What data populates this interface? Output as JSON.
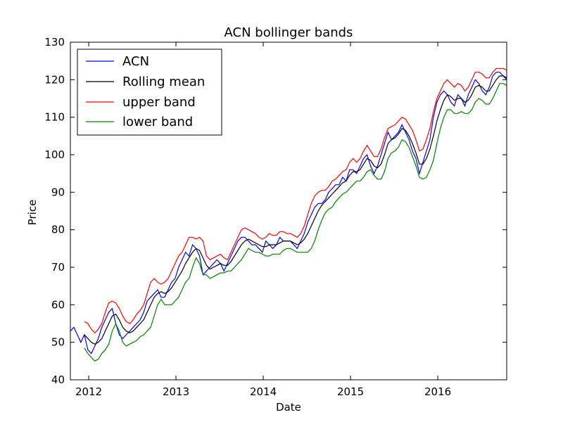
{
  "chart_data": {
    "type": "line",
    "title": "ACN bollinger bands",
    "xlabel": "Date",
    "ylabel": "Price",
    "ylim": [
      40,
      130
    ],
    "xlim": [
      2011.79,
      2016.79
    ],
    "yticks": [
      40,
      50,
      60,
      70,
      80,
      90,
      100,
      110,
      120,
      130
    ],
    "xticks": [
      {
        "value": 2012,
        "label": "2012"
      },
      {
        "value": 2013,
        "label": "2013"
      },
      {
        "value": 2014,
        "label": "2014"
      },
      {
        "value": 2015,
        "label": "2015"
      },
      {
        "value": 2016,
        "label": "2016"
      }
    ],
    "grid": false,
    "legend_position": "top-left",
    "series": [
      {
        "name": "ACN",
        "color": "#0000ff",
        "x": [
          2011.79,
          2011.83,
          2011.87,
          2011.91,
          2011.95,
          2011.99,
          2012.03,
          2012.07,
          2012.11,
          2012.15,
          2012.19,
          2012.23,
          2012.27,
          2012.31,
          2012.35,
          2012.39,
          2012.43,
          2012.47,
          2012.51,
          2012.55,
          2012.59,
          2012.63,
          2012.67,
          2012.71,
          2012.75,
          2012.79,
          2012.83,
          2012.87,
          2012.91,
          2012.95,
          2012.99,
          2013.03,
          2013.07,
          2013.11,
          2013.15,
          2013.19,
          2013.23,
          2013.27,
          2013.31,
          2013.35,
          2013.39,
          2013.43,
          2013.47,
          2013.51,
          2013.55,
          2013.59,
          2013.63,
          2013.67,
          2013.71,
          2013.75,
          2013.79,
          2013.83,
          2013.87,
          2013.91,
          2013.95,
          2013.99,
          2014.03,
          2014.07,
          2014.11,
          2014.15,
          2014.19,
          2014.23,
          2014.27,
          2014.31,
          2014.35,
          2014.39,
          2014.43,
          2014.47,
          2014.51,
          2014.55,
          2014.59,
          2014.63,
          2014.67,
          2014.71,
          2014.75,
          2014.79,
          2014.83,
          2014.87,
          2014.91,
          2014.95,
          2014.99,
          2015.03,
          2015.07,
          2015.11,
          2015.15,
          2015.19,
          2015.23,
          2015.27,
          2015.31,
          2015.35,
          2015.39,
          2015.43,
          2015.47,
          2015.51,
          2015.55,
          2015.59,
          2015.63,
          2015.67,
          2015.71,
          2015.75,
          2015.79,
          2015.83,
          2015.87,
          2015.91,
          2015.95,
          2015.99,
          2016.03,
          2016.07,
          2016.11,
          2016.15,
          2016.19,
          2016.23,
          2016.27,
          2016.31,
          2016.35,
          2016.39,
          2016.43,
          2016.47,
          2016.51,
          2016.55,
          2016.59,
          2016.63,
          2016.67,
          2016.71,
          2016.75,
          2016.79
        ],
        "values": [
          53,
          54,
          52,
          50,
          52,
          48,
          47,
          49,
          51,
          54,
          56,
          58,
          59,
          55,
          52,
          51,
          52,
          53,
          54,
          55,
          56,
          58,
          61,
          62,
          63,
          64,
          62,
          62,
          64,
          66,
          67,
          70,
          72,
          74,
          73,
          76,
          75,
          73,
          68,
          69,
          70,
          71,
          72,
          71,
          69,
          71,
          73,
          75,
          77,
          78,
          78,
          77,
          76,
          76,
          75,
          74,
          77,
          76,
          75,
          76,
          78,
          77,
          77,
          77,
          76,
          75,
          77,
          79,
          82,
          84,
          86,
          87,
          87,
          88,
          90,
          91,
          92,
          92,
          94,
          93,
          96,
          96,
          95,
          97,
          99,
          100,
          97,
          95,
          97,
          100,
          103,
          106,
          104,
          105,
          106,
          108,
          106,
          104,
          101,
          99,
          95,
          98,
          101,
          104,
          110,
          114,
          116,
          117,
          116,
          114,
          113,
          116,
          115,
          113,
          116,
          118,
          120,
          119,
          117,
          116,
          118,
          121,
          122,
          122,
          121,
          120
        ]
      },
      {
        "name": "Rolling mean",
        "color": "#000000",
        "x": [
          2011.79,
          2011.83,
          2011.87,
          2011.91,
          2011.95,
          2011.99,
          2012.03,
          2012.07,
          2012.11,
          2012.15,
          2012.19,
          2012.23,
          2012.27,
          2012.31,
          2012.35,
          2012.39,
          2012.43,
          2012.47,
          2012.51,
          2012.55,
          2012.59,
          2012.63,
          2012.67,
          2012.71,
          2012.75,
          2012.79,
          2012.83,
          2012.87,
          2012.91,
          2012.95,
          2012.99,
          2013.03,
          2013.07,
          2013.11,
          2013.15,
          2013.19,
          2013.23,
          2013.27,
          2013.31,
          2013.35,
          2013.39,
          2013.43,
          2013.47,
          2013.51,
          2013.55,
          2013.59,
          2013.63,
          2013.67,
          2013.71,
          2013.75,
          2013.79,
          2013.83,
          2013.87,
          2013.91,
          2013.95,
          2013.99,
          2014.03,
          2014.07,
          2014.11,
          2014.15,
          2014.19,
          2014.23,
          2014.27,
          2014.31,
          2014.35,
          2014.39,
          2014.43,
          2014.47,
          2014.51,
          2014.55,
          2014.59,
          2014.63,
          2014.67,
          2014.71,
          2014.75,
          2014.79,
          2014.83,
          2014.87,
          2014.91,
          2014.95,
          2014.99,
          2015.03,
          2015.07,
          2015.11,
          2015.15,
          2015.19,
          2015.23,
          2015.27,
          2015.31,
          2015.35,
          2015.39,
          2015.43,
          2015.47,
          2015.51,
          2015.55,
          2015.59,
          2015.63,
          2015.67,
          2015.71,
          2015.75,
          2015.79,
          2015.83,
          2015.87,
          2015.91,
          2015.95,
          2015.99,
          2016.03,
          2016.07,
          2016.11,
          2016.15,
          2016.19,
          2016.23,
          2016.27,
          2016.31,
          2016.35,
          2016.39,
          2016.43,
          2016.47,
          2016.51,
          2016.55,
          2016.59,
          2016.63,
          2016.67,
          2016.71,
          2016.75,
          2016.79
        ],
        "values": [
          null,
          null,
          null,
          null,
          52,
          51,
          50,
          49.5,
          50,
          51,
          53,
          55,
          57,
          57.5,
          56,
          54,
          53,
          52.5,
          53,
          54,
          55,
          56,
          58,
          60,
          62,
          63,
          63.5,
          63,
          63.5,
          64.5,
          66,
          67.5,
          69,
          71,
          72.5,
          74,
          75,
          74.5,
          72.5,
          70.5,
          69.5,
          70,
          70.5,
          71,
          70.5,
          70.5,
          71.5,
          73,
          74.5,
          76,
          77,
          77.5,
          77,
          76.5,
          76,
          75.5,
          75.5,
          76,
          76,
          76,
          76.5,
          77,
          77,
          77,
          76.5,
          76,
          76.5,
          77.5,
          79,
          81,
          83,
          85,
          86.5,
          87.5,
          88.5,
          89.5,
          90.5,
          91.5,
          92.5,
          93,
          94.5,
          95.5,
          95.5,
          96,
          97.5,
          99,
          98.5,
          97,
          96.5,
          97.5,
          100,
          103,
          104,
          104.5,
          105.5,
          107,
          106.5,
          105,
          103,
          100.5,
          97.5,
          97.5,
          99,
          101.5,
          105,
          109,
          112,
          114.5,
          116,
          115.5,
          114.5,
          115,
          115,
          114,
          114.5,
          116,
          118,
          118.5,
          118,
          117,
          117,
          118.5,
          120,
          121,
          121,
          120.5
        ]
      },
      {
        "name": "upper band",
        "color": "#ff0000",
        "x": [
          2011.79,
          2011.83,
          2011.87,
          2011.91,
          2011.95,
          2011.99,
          2012.03,
          2012.07,
          2012.11,
          2012.15,
          2012.19,
          2012.23,
          2012.27,
          2012.31,
          2012.35,
          2012.39,
          2012.43,
          2012.47,
          2012.51,
          2012.55,
          2012.59,
          2012.63,
          2012.67,
          2012.71,
          2012.75,
          2012.79,
          2012.83,
          2012.87,
          2012.91,
          2012.95,
          2012.99,
          2013.03,
          2013.07,
          2013.11,
          2013.15,
          2013.19,
          2013.23,
          2013.27,
          2013.31,
          2013.35,
          2013.39,
          2013.43,
          2013.47,
          2013.51,
          2013.55,
          2013.59,
          2013.63,
          2013.67,
          2013.71,
          2013.75,
          2013.79,
          2013.83,
          2013.87,
          2013.91,
          2013.95,
          2013.99,
          2014.03,
          2014.07,
          2014.11,
          2014.15,
          2014.19,
          2014.23,
          2014.27,
          2014.31,
          2014.35,
          2014.39,
          2014.43,
          2014.47,
          2014.51,
          2014.55,
          2014.59,
          2014.63,
          2014.67,
          2014.71,
          2014.75,
          2014.79,
          2014.83,
          2014.87,
          2014.91,
          2014.95,
          2014.99,
          2015.03,
          2015.07,
          2015.11,
          2015.15,
          2015.19,
          2015.23,
          2015.27,
          2015.31,
          2015.35,
          2015.39,
          2015.43,
          2015.47,
          2015.51,
          2015.55,
          2015.59,
          2015.63,
          2015.67,
          2015.71,
          2015.75,
          2015.79,
          2015.83,
          2015.87,
          2015.91,
          2015.95,
          2015.99,
          2016.03,
          2016.07,
          2016.11,
          2016.15,
          2016.19,
          2016.23,
          2016.27,
          2016.31,
          2016.35,
          2016.39,
          2016.43,
          2016.47,
          2016.51,
          2016.55,
          2016.59,
          2016.63,
          2016.67,
          2016.71,
          2016.75,
          2016.79
        ],
        "values": [
          null,
          null,
          null,
          null,
          55.5,
          55,
          53.5,
          52.5,
          53.5,
          55,
          58,
          60.5,
          61,
          60.5,
          59,
          57,
          55.5,
          55,
          56,
          57.5,
          58.5,
          60,
          63,
          66,
          67,
          66,
          65.5,
          66,
          67,
          69,
          71,
          73,
          74,
          76,
          78,
          78,
          77.5,
          78,
          77,
          73,
          72,
          72.5,
          73,
          73.5,
          72.5,
          72,
          74,
          76,
          78,
          80,
          80.5,
          80,
          79.5,
          79,
          78,
          77.5,
          78,
          79,
          78.5,
          78.5,
          79.5,
          79.5,
          79,
          79,
          78.5,
          78,
          79,
          81,
          84,
          87,
          89,
          90,
          90.5,
          90.5,
          91.5,
          93,
          93.5,
          94.5,
          95.5,
          96,
          98,
          99,
          98,
          99,
          101,
          102.5,
          101,
          99.5,
          99.5,
          101.5,
          104.5,
          107,
          107.5,
          108,
          109,
          110,
          109.5,
          108,
          106.5,
          104,
          101,
          101.5,
          104,
          107,
          111.5,
          115,
          117,
          119,
          120,
          119,
          118,
          119,
          118.5,
          117,
          118,
          120,
          122,
          122,
          121.5,
          120.5,
          120.5,
          122,
          123,
          123,
          123,
          122.5
        ]
      },
      {
        "name": "lower band",
        "color": "#008000",
        "x": [
          2011.79,
          2011.83,
          2011.87,
          2011.91,
          2011.95,
          2011.99,
          2012.03,
          2012.07,
          2012.11,
          2012.15,
          2012.19,
          2012.23,
          2012.27,
          2012.31,
          2012.35,
          2012.39,
          2012.43,
          2012.47,
          2012.51,
          2012.55,
          2012.59,
          2012.63,
          2012.67,
          2012.71,
          2012.75,
          2012.79,
          2012.83,
          2012.87,
          2012.91,
          2012.95,
          2012.99,
          2013.03,
          2013.07,
          2013.11,
          2013.15,
          2013.19,
          2013.23,
          2013.27,
          2013.31,
          2013.35,
          2013.39,
          2013.43,
          2013.47,
          2013.51,
          2013.55,
          2013.59,
          2013.63,
          2013.67,
          2013.71,
          2013.75,
          2013.79,
          2013.83,
          2013.87,
          2013.91,
          2013.95,
          2013.99,
          2014.03,
          2014.07,
          2014.11,
          2014.15,
          2014.19,
          2014.23,
          2014.27,
          2014.31,
          2014.35,
          2014.39,
          2014.43,
          2014.47,
          2014.51,
          2014.55,
          2014.59,
          2014.63,
          2014.67,
          2014.71,
          2014.75,
          2014.79,
          2014.83,
          2014.87,
          2014.91,
          2014.95,
          2014.99,
          2015.03,
          2015.07,
          2015.11,
          2015.15,
          2015.19,
          2015.23,
          2015.27,
          2015.31,
          2015.35,
          2015.39,
          2015.43,
          2015.47,
          2015.51,
          2015.55,
          2015.59,
          2015.63,
          2015.67,
          2015.71,
          2015.75,
          2015.79,
          2015.83,
          2015.87,
          2015.91,
          2015.95,
          2015.99,
          2016.03,
          2016.07,
          2016.11,
          2016.15,
          2016.19,
          2016.23,
          2016.27,
          2016.31,
          2016.35,
          2016.39,
          2016.43,
          2016.47,
          2016.51,
          2016.55,
          2016.59,
          2016.63,
          2016.67,
          2016.71,
          2016.75,
          2016.79
        ],
        "values": [
          null,
          null,
          null,
          null,
          48.5,
          47,
          46,
          45,
          45.5,
          47,
          48,
          49.5,
          53,
          55,
          53,
          50,
          49,
          49.5,
          50,
          50.5,
          51.5,
          52,
          53,
          54,
          57,
          60,
          61.5,
          60,
          60,
          60,
          61,
          62,
          64,
          66,
          67,
          70,
          72.5,
          71,
          68,
          68,
          67,
          67.5,
          68,
          68.5,
          68.5,
          69,
          69,
          70,
          71,
          72,
          73.5,
          75,
          74.5,
          74,
          74,
          73.5,
          73,
          73,
          73.5,
          73.5,
          73.5,
          74.5,
          75,
          75,
          74.5,
          74,
          74,
          74,
          74,
          75,
          77,
          80,
          82.5,
          84.5,
          85.5,
          86,
          87.5,
          88.5,
          89.5,
          90,
          91,
          92,
          93,
          93,
          94,
          95.5,
          96,
          94.5,
          93.5,
          93.5,
          95.5,
          99,
          100.5,
          101,
          102,
          104,
          103.5,
          102,
          99.5,
          97,
          94,
          93.5,
          94,
          96,
          98.5,
          103,
          107,
          110,
          112,
          112,
          111,
          111,
          111.5,
          111,
          111,
          112,
          114,
          115,
          114.5,
          113.5,
          113.5,
          115,
          117,
          119,
          119,
          118.5
        ]
      }
    ]
  }
}
